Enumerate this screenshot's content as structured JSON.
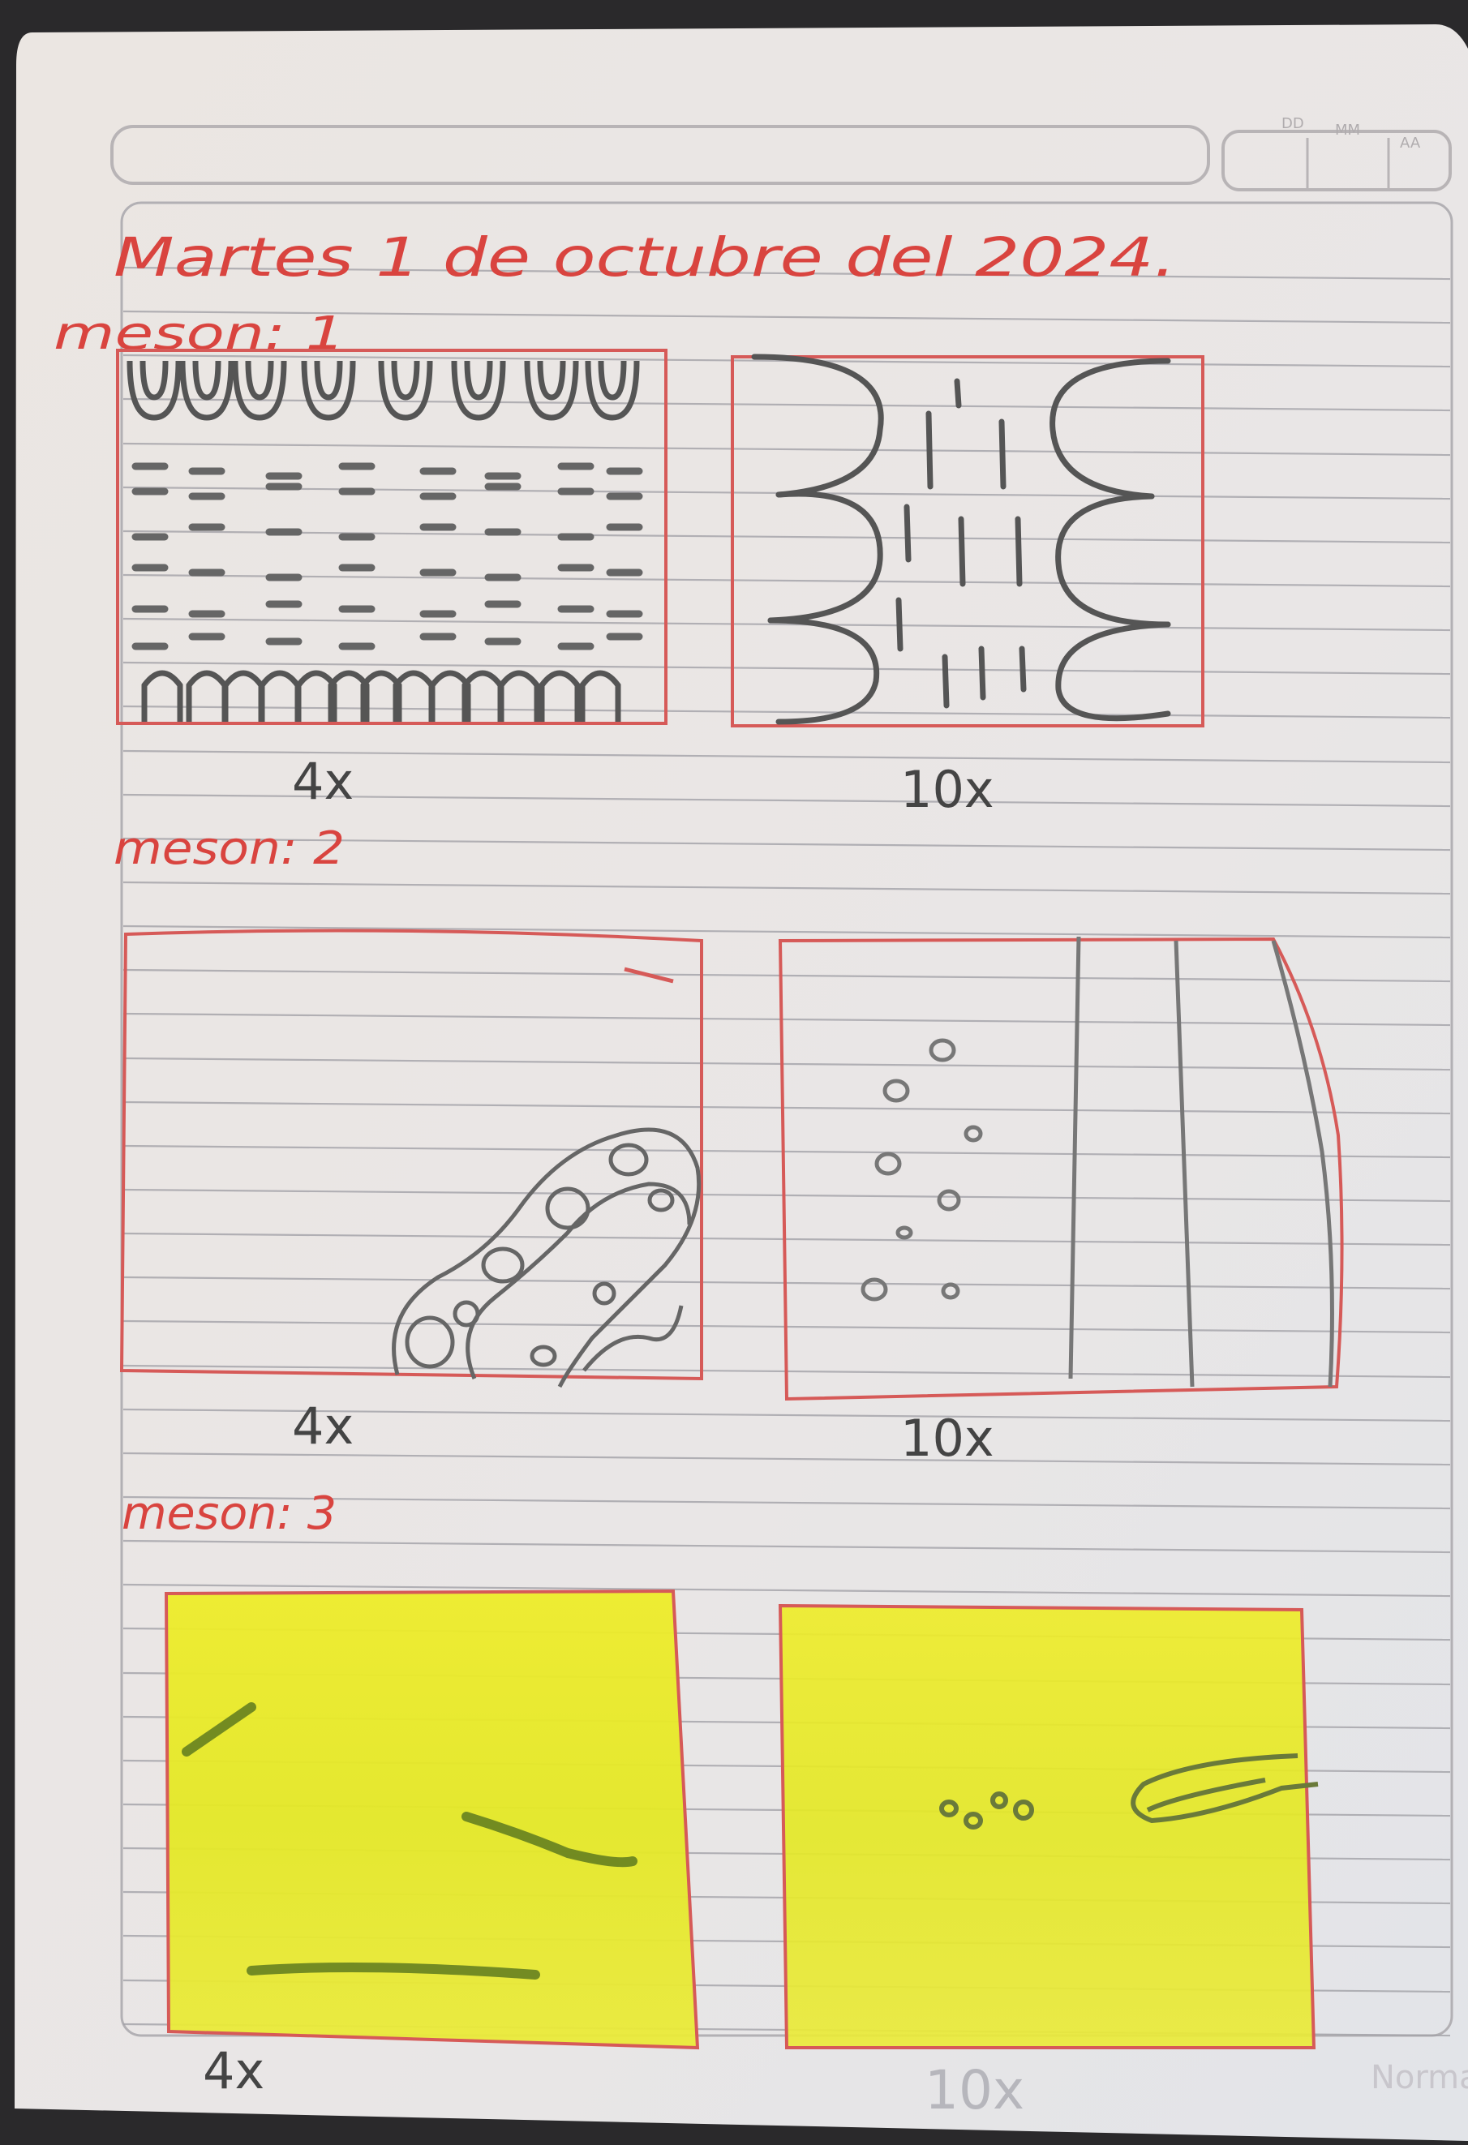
{
  "page": {
    "date_header": {
      "day_label": "DD",
      "month_label": "MM",
      "year_label": "AA"
    },
    "title": "Martes 1 de octubre del 2024.",
    "sections": [
      {
        "label": "meson: 1",
        "panels": [
          {
            "caption": "4x"
          },
          {
            "caption": "10x"
          }
        ]
      },
      {
        "label": "meson: 2",
        "panels": [
          {
            "caption": "4x"
          },
          {
            "caption": "10x"
          }
        ]
      },
      {
        "label": "meson: 3",
        "panels": [
          {
            "caption": "4x"
          },
          {
            "caption": "10x"
          }
        ]
      }
    ],
    "brand": "Norma"
  },
  "colors": {
    "ink_red": "#d9443f",
    "pencil": "#5a5a5a",
    "highlighter": "#e6ea25",
    "paper": "#ece8e4",
    "rule_line": "#9a9aa0"
  }
}
